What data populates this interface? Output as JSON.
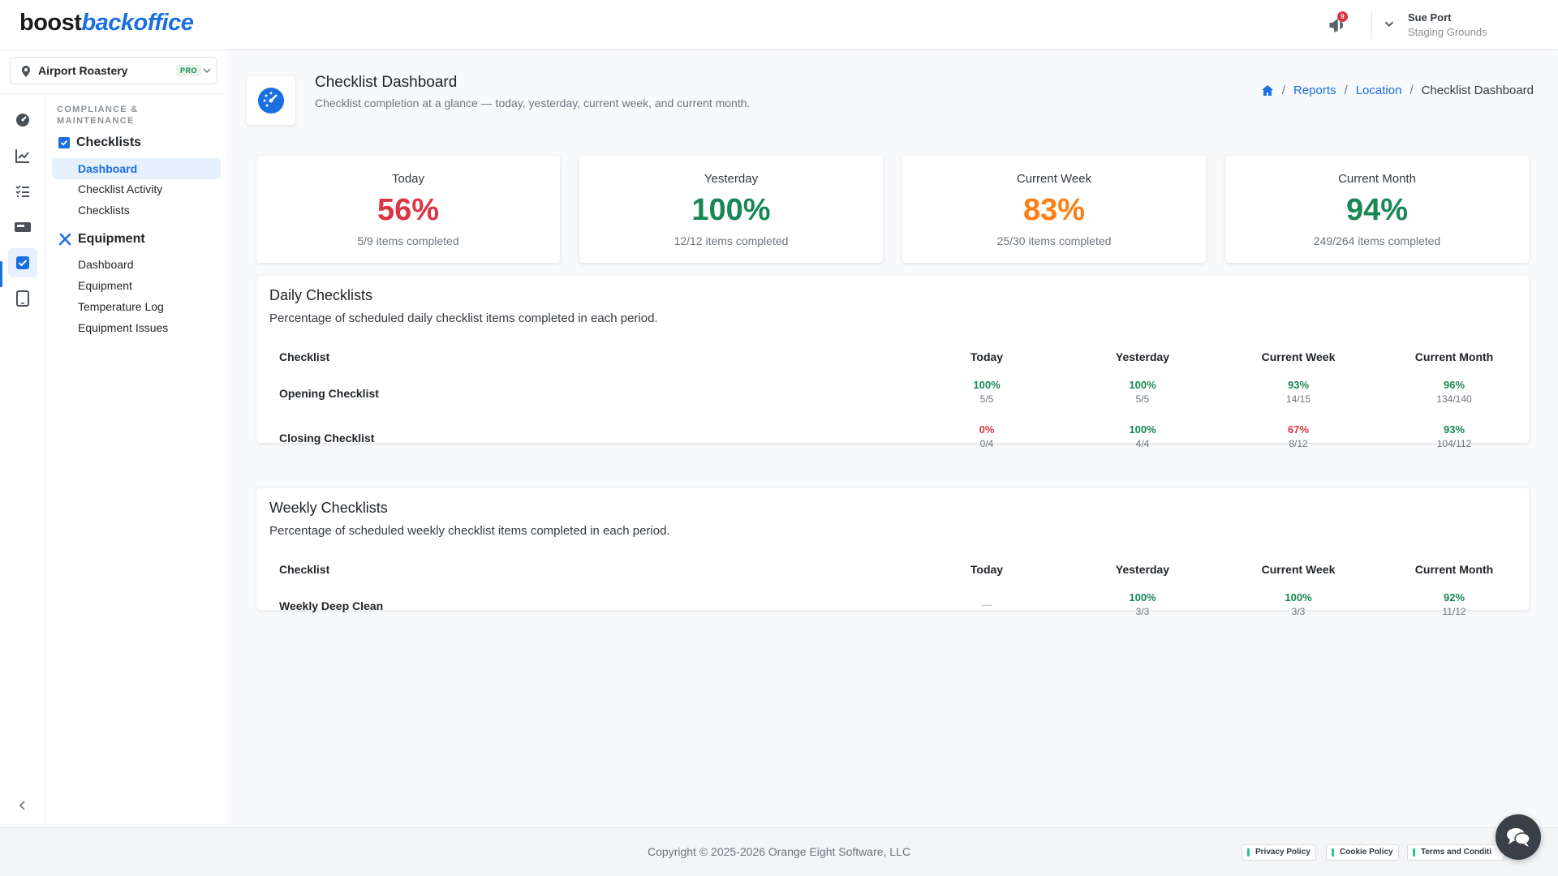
{
  "brand": {
    "part1": "boost",
    "part2": "backoffice"
  },
  "header": {
    "notification_count": "9",
    "user_name": "Sue Port",
    "user_org": "Staging Grounds"
  },
  "location": {
    "name": "Airport Roastery",
    "plan_badge": "PRO"
  },
  "sidebar": {
    "section_heading": "COMPLIANCE & MAINTENANCE",
    "groups": [
      {
        "label": "Checklists",
        "items": [
          {
            "label": "Dashboard"
          },
          {
            "label": "Checklist Activity"
          },
          {
            "label": "Checklists"
          }
        ]
      },
      {
        "label": "Equipment",
        "items": [
          {
            "label": "Dashboard"
          },
          {
            "label": "Equipment"
          },
          {
            "label": "Temperature Log"
          },
          {
            "label": "Equipment Issues"
          }
        ]
      }
    ]
  },
  "page": {
    "title": "Checklist Dashboard",
    "subtitle": "Checklist completion at a glance — today, yesterday, current week, and current month.",
    "breadcrumb": [
      {
        "label": "Reports"
      },
      {
        "label": "Location"
      },
      {
        "label": "Checklist Dashboard"
      }
    ]
  },
  "stats": [
    {
      "label": "Today",
      "percent": "56%",
      "items": "5/9 items completed",
      "color": "#dc3545"
    },
    {
      "label": "Yesterday",
      "percent": "100%",
      "items": "12/12 items completed",
      "color": "#198754"
    },
    {
      "label": "Current Week",
      "percent": "83%",
      "items": "25/30 items completed",
      "color": "#fd7e14"
    },
    {
      "label": "Current Month",
      "percent": "94%",
      "items": "249/264 items completed",
      "color": "#198754"
    }
  ],
  "daily": {
    "title": "Daily Checklists",
    "description": "Percentage of scheduled daily checklist items completed in each period.",
    "columns": [
      "Checklist",
      "Today",
      "Yesterday",
      "Current Week",
      "Current Month"
    ],
    "rows": [
      {
        "name": "Opening Checklist",
        "cells": [
          {
            "pct": "100%",
            "frac": "5/5"
          },
          {
            "pct": "100%",
            "frac": "5/5"
          },
          {
            "pct": "93%",
            "frac": "14/15"
          },
          {
            "pct": "96%",
            "frac": "134/140"
          }
        ]
      },
      {
        "name": "Closing Checklist",
        "cells": [
          {
            "pct": "0%",
            "frac": "0/4"
          },
          {
            "pct": "100%",
            "frac": "4/4"
          },
          {
            "pct": "67%",
            "frac": "8/12"
          },
          {
            "pct": "93%",
            "frac": "104/112"
          }
        ]
      }
    ]
  },
  "weekly": {
    "title": "Weekly Checklists",
    "description": "Percentage of scheduled weekly checklist items completed in each period.",
    "columns": [
      "Checklist",
      "Today",
      "Yesterday",
      "Current Week",
      "Current Month"
    ],
    "rows": [
      {
        "name": "Weekly Deep Clean",
        "cells": [
          {
            "pct": "—",
            "frac": ""
          },
          {
            "pct": "100%",
            "frac": "3/3"
          },
          {
            "pct": "100%",
            "frac": "3/3"
          },
          {
            "pct": "92%",
            "frac": "11/12"
          }
        ]
      }
    ]
  },
  "footer": {
    "copyright": "Copyright © 2025-2026 Orange Eight Software, LLC",
    "links": [
      {
        "label": "Privacy Policy"
      },
      {
        "label": "Cookie Policy"
      },
      {
        "label": "Terms and Conditi"
      }
    ]
  }
}
